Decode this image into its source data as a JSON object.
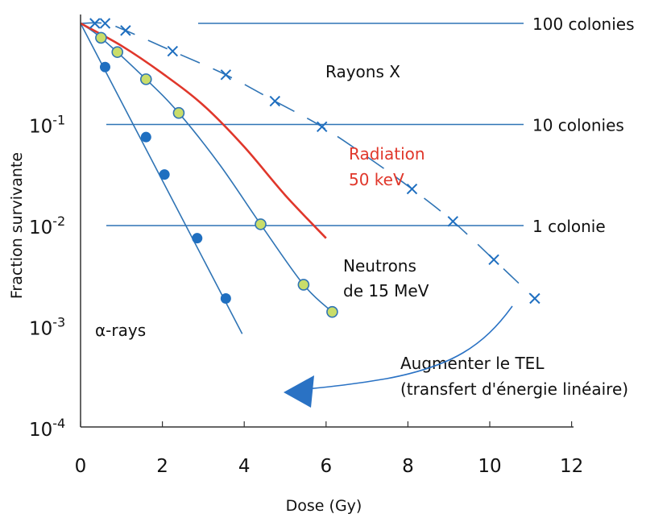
{
  "chart_data": {
    "type": "scatter",
    "title": "",
    "xlabel": "Dose (Gy)",
    "ylabel": "Fraction survivante",
    "x_ticks": [
      "0",
      "2",
      "4",
      "6",
      "8",
      "10",
      "12"
    ],
    "y_ticks": [
      {
        "value": 0.1,
        "base": "10",
        "exp": "-1"
      },
      {
        "value": 0.01,
        "base": "10",
        "exp": "-2"
      },
      {
        "value": 0.001,
        "base": "10",
        "exp": "-3"
      },
      {
        "value": 0.0001,
        "base": "10",
        "exp": "-4"
      }
    ],
    "xlim": [
      0,
      12
    ],
    "ylim": [
      5e-05,
      1
    ],
    "y_scale": "log",
    "grid": false,
    "colors": {
      "axis": "#333333",
      "curve": "#2f74b5",
      "alpha_marker": "#1f6fc0",
      "neutron_marker_fill": "#c9dd6a",
      "neutron_marker_stroke": "#2f74b5",
      "xray_marker": "#1f6fc0",
      "radiation_curve": "#e0372b",
      "reference_line": "#2f74b5",
      "arrow": "#2a72c4"
    },
    "reference_lines": [
      {
        "y": 1.0,
        "label": "100 colonies"
      },
      {
        "y": 0.1,
        "label": "10 colonies"
      },
      {
        "y": 0.01,
        "label": "1 colonie"
      }
    ],
    "series": [
      {
        "name": "α-rays",
        "marker": "filled-circle",
        "points": [
          {
            "x": 0.6,
            "y": 0.37
          },
          {
            "x": 1.6,
            "y": 0.075
          },
          {
            "x": 2.05,
            "y": 0.032
          },
          {
            "x": 2.85,
            "y": 0.0075
          },
          {
            "x": 3.55,
            "y": 0.0019
          }
        ],
        "fit": [
          {
            "x": 0,
            "y": 1.0
          },
          {
            "x": 3.95,
            "y": 0.00085
          }
        ]
      },
      {
        "name": "Neutrons de 15 MeV",
        "marker": "yellow-circle",
        "points": [
          {
            "x": 0.5,
            "y": 0.72
          },
          {
            "x": 0.9,
            "y": 0.52
          },
          {
            "x": 1.6,
            "y": 0.28
          },
          {
            "x": 2.4,
            "y": 0.13
          },
          {
            "x": 4.4,
            "y": 0.0103
          },
          {
            "x": 5.45,
            "y": 0.0026
          },
          {
            "x": 6.15,
            "y": 0.0014
          }
        ],
        "fit": [
          {
            "x": 0,
            "y": 1.0
          },
          {
            "x": 0.5,
            "y": 0.72
          },
          {
            "x": 1.6,
            "y": 0.28
          },
          {
            "x": 2.4,
            "y": 0.13
          },
          {
            "x": 3.4,
            "y": 0.04
          },
          {
            "x": 4.4,
            "y": 0.0103
          },
          {
            "x": 5.45,
            "y": 0.0026
          },
          {
            "x": 6.15,
            "y": 0.0014
          }
        ]
      },
      {
        "name": "Rayons X",
        "marker": "x",
        "points": [
          {
            "x": 0.35,
            "y": 1.0
          },
          {
            "x": 0.6,
            "y": 1.0
          },
          {
            "x": 1.1,
            "y": 0.85
          },
          {
            "x": 2.25,
            "y": 0.53
          },
          {
            "x": 3.55,
            "y": 0.31
          },
          {
            "x": 4.75,
            "y": 0.17
          },
          {
            "x": 5.9,
            "y": 0.095
          },
          {
            "x": 8.1,
            "y": 0.023
          },
          {
            "x": 9.1,
            "y": 0.011
          },
          {
            "x": 10.1,
            "y": 0.0046
          },
          {
            "x": 11.1,
            "y": 0.0019
          }
        ],
        "fit": [
          {
            "x": 0,
            "y": 1.0
          },
          {
            "x": 0.6,
            "y": 1.0
          },
          {
            "x": 1.1,
            "y": 0.85
          },
          {
            "x": 2.25,
            "y": 0.53
          },
          {
            "x": 3.55,
            "y": 0.31
          },
          {
            "x": 4.75,
            "y": 0.17
          },
          {
            "x": 5.9,
            "y": 0.095
          },
          {
            "x": 7.0,
            "y": 0.048
          },
          {
            "x": 8.1,
            "y": 0.023
          },
          {
            "x": 9.1,
            "y": 0.011
          },
          {
            "x": 10.1,
            "y": 0.0046
          },
          {
            "x": 11.1,
            "y": 0.0019
          }
        ]
      },
      {
        "name": "Radiation 50 keV",
        "marker": "none",
        "fit": [
          {
            "x": 0,
            "y": 1.0
          },
          {
            "x": 1.0,
            "y": 0.6
          },
          {
            "x": 2.0,
            "y": 0.32
          },
          {
            "x": 3.0,
            "y": 0.155
          },
          {
            "x": 4.0,
            "y": 0.06
          },
          {
            "x": 5.0,
            "y": 0.02
          },
          {
            "x": 6.0,
            "y": 0.0075
          }
        ]
      }
    ],
    "annotations": {
      "xray_label": "Rayons X",
      "radiation_line1": "Radiation",
      "radiation_line2": "50 keV",
      "neutron_line1": "Neutrons",
      "neutron_line2": "de 15 MeV",
      "alpha_label": "α-rays",
      "tel_line1": "Augmenter le TEL",
      "tel_line2": "(transfert d'énergie linéaire)"
    }
  }
}
